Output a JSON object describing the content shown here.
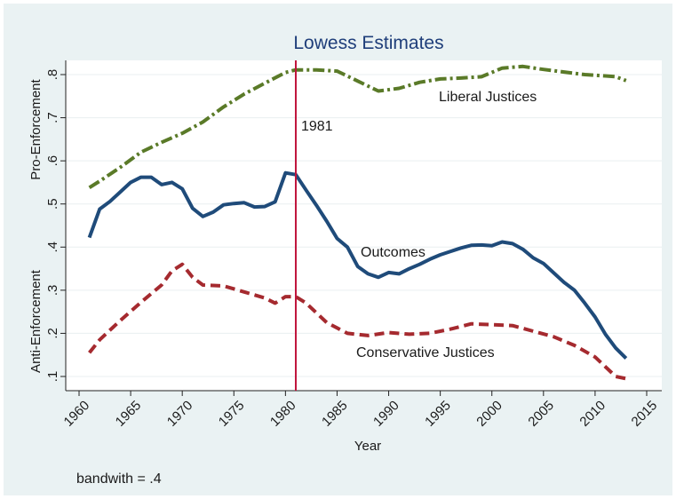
{
  "chart_data": {
    "type": "line",
    "title": "Lowess Estimates",
    "xlabel": "Year",
    "ylabel_top": "Pro-Enforcement",
    "ylabel_bottom": "Anti-Enforcement",
    "xlim": [
      1960,
      2015
    ],
    "ylim": [
      0.1,
      0.8
    ],
    "x_ticks": [
      1960,
      1965,
      1970,
      1975,
      1980,
      1985,
      1990,
      1995,
      2000,
      2005,
      2010,
      2015
    ],
    "y_ticks": [
      0.1,
      0.2,
      0.3,
      0.4,
      0.5,
      0.6,
      0.7,
      0.8
    ],
    "y_tick_labels": [
      ".1",
      ".2",
      ".3",
      ".4",
      ".5",
      ".6",
      ".7",
      ".8"
    ],
    "grid": "horizontal",
    "vline": {
      "x": 1981,
      "label": "1981",
      "color": "#c0143c"
    },
    "note": "bandwith = .4",
    "series": [
      {
        "name": "Liberal Justices",
        "color": "#5a7a28",
        "style": "dashdot",
        "x": [
          1961,
          1962,
          1964,
          1966,
          1968,
          1970,
          1972,
          1974,
          1976,
          1978,
          1980,
          1981,
          1983,
          1985,
          1987,
          1989,
          1991,
          1993,
          1995,
          1997,
          1999,
          2001,
          2003,
          2005,
          2007,
          2009,
          2011,
          2012,
          2013
        ],
        "y": [
          0.538,
          0.553,
          0.585,
          0.62,
          0.643,
          0.664,
          0.69,
          0.725,
          0.755,
          0.78,
          0.805,
          0.811,
          0.811,
          0.808,
          0.785,
          0.762,
          0.768,
          0.782,
          0.79,
          0.792,
          0.795,
          0.815,
          0.819,
          0.812,
          0.806,
          0.8,
          0.797,
          0.795,
          0.786
        ]
      },
      {
        "name": "Outcomes",
        "color": "#1f4b7a",
        "style": "solid",
        "x": [
          1961,
          1962,
          1963,
          1964,
          1965,
          1966,
          1967,
          1968,
          1969,
          1970,
          1971,
          1972,
          1973,
          1974,
          1975,
          1976,
          1977,
          1978,
          1979,
          1980,
          1981,
          1982,
          1983,
          1984,
          1985,
          1986,
          1987,
          1988,
          1989,
          1990,
          1991,
          1992,
          1993,
          1994,
          1995,
          1996,
          1997,
          1998,
          1999,
          2000,
          2001,
          2002,
          2003,
          2004,
          2005,
          2006,
          2007,
          2008,
          2009,
          2010,
          2011,
          2012,
          2013
        ],
        "y": [
          0.422,
          0.488,
          0.506,
          0.528,
          0.55,
          0.562,
          0.562,
          0.545,
          0.55,
          0.535,
          0.49,
          0.471,
          0.481,
          0.498,
          0.501,
          0.503,
          0.493,
          0.494,
          0.505,
          0.572,
          0.568,
          0.532,
          0.497,
          0.46,
          0.42,
          0.4,
          0.355,
          0.338,
          0.33,
          0.341,
          0.338,
          0.35,
          0.36,
          0.372,
          0.382,
          0.39,
          0.398,
          0.404,
          0.405,
          0.403,
          0.412,
          0.408,
          0.395,
          0.375,
          0.362,
          0.34,
          0.318,
          0.3,
          0.27,
          0.238,
          0.198,
          0.166,
          0.142
        ]
      },
      {
        "name": "Conservative Justices",
        "color": "#a52a2f",
        "style": "dash",
        "x": [
          1961,
          1962,
          1964,
          1966,
          1968,
          1969,
          1970,
          1971,
          1972,
          1974,
          1976,
          1978,
          1979,
          1980,
          1981,
          1982,
          1984,
          1986,
          1988,
          1990,
          1992,
          1994,
          1996,
          1998,
          2000,
          2002,
          2004,
          2006,
          2008,
          2010,
          2012,
          2013
        ],
        "y": [
          0.155,
          0.185,
          0.23,
          0.272,
          0.312,
          0.345,
          0.36,
          0.33,
          0.312,
          0.31,
          0.296,
          0.282,
          0.27,
          0.285,
          0.285,
          0.27,
          0.225,
          0.2,
          0.195,
          0.202,
          0.198,
          0.2,
          0.21,
          0.222,
          0.22,
          0.218,
          0.205,
          0.192,
          0.172,
          0.145,
          0.1,
          0.095
        ]
      }
    ]
  }
}
